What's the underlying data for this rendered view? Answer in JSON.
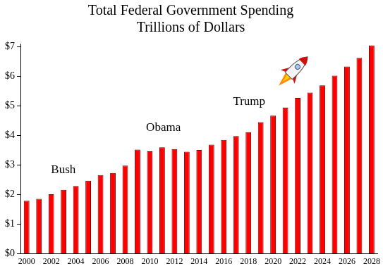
{
  "chart_data": {
    "type": "bar",
    "title": "Total Federal Government Spending",
    "subtitle": "Trillions of Dollars",
    "categories": [
      "2000",
      null,
      "2002",
      null,
      "2004",
      null,
      "2006",
      null,
      "2008",
      null,
      "2010",
      null,
      "2012",
      null,
      "2014",
      null,
      "2016",
      null,
      "2018",
      null,
      "2020",
      null,
      "2022",
      null,
      "2024",
      null,
      "2026",
      null,
      "2028"
    ],
    "values": [
      1.79,
      1.86,
      2.01,
      2.16,
      2.29,
      2.47,
      2.66,
      2.73,
      2.98,
      3.52,
      3.46,
      3.6,
      3.54,
      3.45,
      3.51,
      3.69,
      3.85,
      3.98,
      4.11,
      4.45,
      4.67,
      4.94,
      5.27,
      5.45,
      5.69,
      6.02,
      6.33,
      6.62,
      7.04
    ],
    "color": "#ff0000",
    "ylim": [
      0,
      7.1
    ],
    "yticks": [
      {
        "value": 0,
        "label": "$0"
      },
      {
        "value": 1,
        "label": "$1"
      },
      {
        "value": 2,
        "label": "$2"
      },
      {
        "value": 3,
        "label": "$3"
      },
      {
        "value": 4,
        "label": "$4"
      },
      {
        "value": 5,
        "label": "$5"
      },
      {
        "value": 6,
        "label": "$6"
      },
      {
        "value": 7,
        "label": "$7"
      }
    ],
    "grid": false,
    "annotations": [
      "Bush",
      "Obama",
      "Trump"
    ]
  }
}
